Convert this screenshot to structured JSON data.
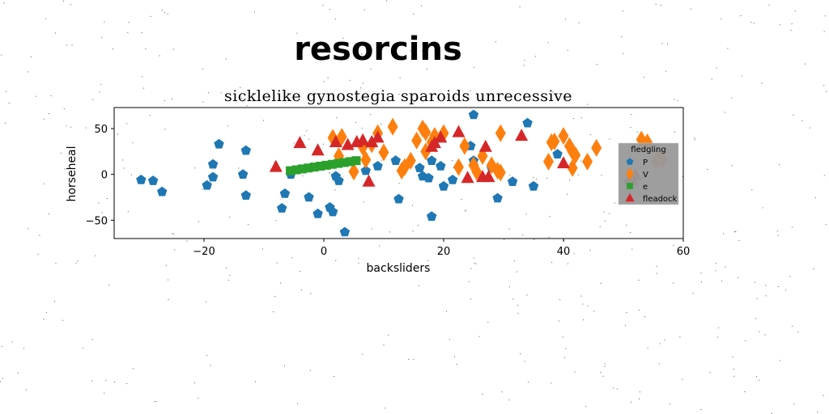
{
  "chart_data": {
    "type": "scatter",
    "suptitle": "resorcins",
    "title": "sicklelike gynostegia sparoids unrecessive",
    "xlabel": "backsliders",
    "ylabel": "horseheal",
    "xlim": [
      -35,
      60
    ],
    "ylim": [
      -70,
      73
    ],
    "xticks": [
      -20,
      0,
      20,
      40,
      60
    ],
    "xtick_labels": [
      "−20",
      "0",
      "20",
      "40",
      "60"
    ],
    "yticks": [
      -50,
      0,
      50
    ],
    "ytick_labels": [
      "−50",
      "0",
      "50"
    ],
    "grid": false,
    "legend": {
      "title": "fledgling",
      "placement": "right",
      "entries": [
        "P",
        "V",
        "e",
        "fleadock"
      ]
    },
    "series": [
      {
        "name": "P",
        "marker": "pentagon",
        "color": "#1f77b4",
        "points": [
          [
            -30.5,
            -6
          ],
          [
            -28.5,
            -7
          ],
          [
            -27,
            -19
          ],
          [
            -19.5,
            -12
          ],
          [
            -18.5,
            11
          ],
          [
            -18.5,
            -3
          ],
          [
            -17.5,
            33
          ],
          [
            -13.5,
            0
          ],
          [
            -13,
            -23
          ],
          [
            -13,
            26
          ],
          [
            -7,
            -37
          ],
          [
            -6.5,
            -21
          ],
          [
            -5.5,
            0
          ],
          [
            -2.5,
            -25
          ],
          [
            -1,
            -43
          ],
          [
            1,
            -36
          ],
          [
            1.5,
            -41
          ],
          [
            2,
            -2
          ],
          [
            2.5,
            -7
          ],
          [
            3.5,
            -63
          ],
          [
            7,
            4
          ],
          [
            9,
            9
          ],
          [
            12,
            15
          ],
          [
            12.5,
            -27
          ],
          [
            16,
            7
          ],
          [
            16.5,
            -2
          ],
          [
            17.5,
            -4
          ],
          [
            18,
            -46
          ],
          [
            18,
            15
          ],
          [
            19.5,
            9
          ],
          [
            20,
            -13
          ],
          [
            21.5,
            -6
          ],
          [
            24.5,
            31
          ],
          [
            25,
            15
          ],
          [
            25,
            65
          ],
          [
            28,
            7
          ],
          [
            29,
            -26
          ],
          [
            31.5,
            -8
          ],
          [
            34,
            56
          ],
          [
            35,
            -13
          ],
          [
            39,
            22
          ]
        ]
      },
      {
        "name": "V",
        "marker": "thin_diamond",
        "color": "#ff7f0e",
        "points": [
          [
            1.5,
            40
          ],
          [
            2.5,
            20
          ],
          [
            3,
            41
          ],
          [
            5,
            3
          ],
          [
            6.5,
            30
          ],
          [
            7,
            16
          ],
          [
            8,
            33
          ],
          [
            9,
            45
          ],
          [
            10,
            24
          ],
          [
            11.5,
            52
          ],
          [
            13,
            4
          ],
          [
            13.5,
            8
          ],
          [
            14.5,
            15
          ],
          [
            15.5,
            37
          ],
          [
            16.5,
            50
          ],
          [
            17,
            25
          ],
          [
            17,
            46
          ],
          [
            18,
            35
          ],
          [
            18.5,
            42
          ],
          [
            20,
            45
          ],
          [
            22.5,
            8
          ],
          [
            23.5,
            31
          ],
          [
            25,
            10
          ],
          [
            25.5,
            3
          ],
          [
            26.5,
            20
          ],
          [
            28,
            10
          ],
          [
            29,
            4
          ],
          [
            29.5,
            2
          ],
          [
            29.5,
            45
          ],
          [
            37.5,
            14
          ],
          [
            38,
            35
          ],
          [
            38.5,
            36
          ],
          [
            40,
            42
          ],
          [
            41,
            31
          ],
          [
            41.5,
            25
          ],
          [
            41.5,
            7
          ],
          [
            42,
            21
          ],
          [
            44,
            14
          ],
          [
            45.5,
            29
          ],
          [
            53,
            38
          ],
          [
            54,
            35
          ],
          [
            55.5,
            14
          ],
          [
            56,
            18
          ],
          [
            56.5,
            16
          ]
        ]
      },
      {
        "name": "e",
        "marker": "square",
        "color": "#2ca02c",
        "points": [
          [
            -5.6,
            4
          ],
          [
            -4.6,
            5
          ],
          [
            -3.6,
            6
          ],
          [
            -2.6,
            7
          ],
          [
            -1.6,
            8
          ],
          [
            -0.6,
            9
          ],
          [
            0.4,
            10
          ],
          [
            1.4,
            11
          ],
          [
            2.4,
            12
          ],
          [
            3.4,
            13
          ],
          [
            4.4,
            14
          ],
          [
            5.4,
            15
          ]
        ]
      },
      {
        "name": "fleadock",
        "marker": "triangle",
        "color": "#d62728",
        "points": [
          [
            -8,
            8
          ],
          [
            -4,
            34
          ],
          [
            -1,
            26
          ],
          [
            2,
            35
          ],
          [
            4,
            32
          ],
          [
            5.5,
            35
          ],
          [
            6.5,
            37
          ],
          [
            7.5,
            -8
          ],
          [
            8,
            35
          ],
          [
            9,
            40
          ],
          [
            18,
            30
          ],
          [
            18.5,
            34
          ],
          [
            19.5,
            40
          ],
          [
            22.5,
            46
          ],
          [
            24,
            -4
          ],
          [
            26.5,
            -3
          ],
          [
            27,
            30
          ],
          [
            27.5,
            -3
          ],
          [
            33,
            42
          ],
          [
            40,
            12
          ],
          [
            51,
            -5
          ],
          [
            51.5,
            -7
          ],
          [
            52,
            -1
          ]
        ]
      }
    ]
  }
}
